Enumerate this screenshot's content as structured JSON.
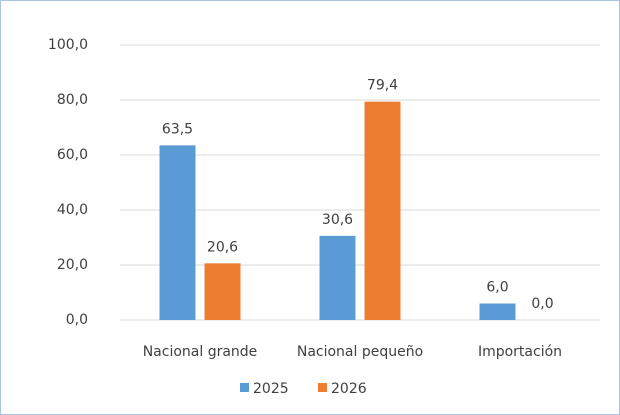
{
  "chart_data": {
    "type": "bar",
    "categories": [
      "Nacional grande",
      "Nacional pequeño",
      "Importación"
    ],
    "series": [
      {
        "name": "2025",
        "color": "#5b9bd5",
        "values": [
          63.5,
          30.6,
          6.0
        ],
        "value_labels": [
          "63,5",
          "30,6",
          "6,0"
        ]
      },
      {
        "name": "2026",
        "color": "#ed7d31",
        "values": [
          20.6,
          79.4,
          0.0
        ],
        "value_labels": [
          "20,6",
          "79,4",
          "0,0"
        ]
      }
    ],
    "ylim": [
      0,
      100
    ],
    "yticks": [
      {
        "value": 0,
        "label": "0,0"
      },
      {
        "value": 20,
        "label": "20,0"
      },
      {
        "value": 40,
        "label": "40,0"
      },
      {
        "value": 60,
        "label": "60,0"
      },
      {
        "value": 80,
        "label": "80,0"
      },
      {
        "value": 100,
        "label": "100,0"
      }
    ],
    "grid": true,
    "legend": "bottom"
  }
}
